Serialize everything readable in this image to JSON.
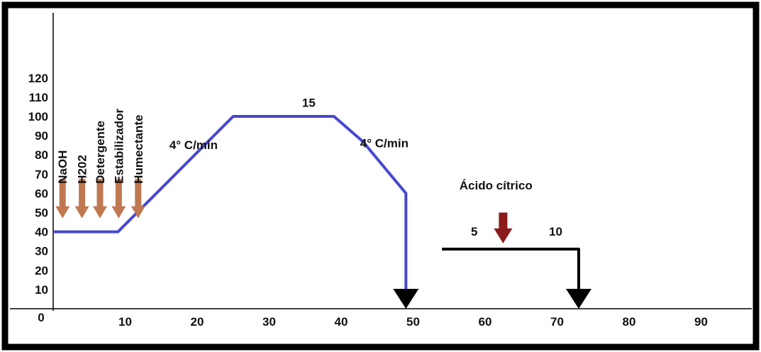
{
  "chart_data": {
    "type": "line",
    "title": "",
    "xlabel": "",
    "ylabel": "",
    "xlim": [
      0,
      90
    ],
    "ylim": [
      0,
      120
    ],
    "grid": false,
    "x_ticks": [
      {
        "value": 0,
        "label": "0"
      },
      {
        "value": 10,
        "label": "10"
      },
      {
        "value": 20,
        "label": "20"
      },
      {
        "value": 30,
        "label": "30"
      },
      {
        "value": 40,
        "label": "40"
      },
      {
        "value": 50,
        "label": "50"
      },
      {
        "value": 60,
        "label": "60"
      },
      {
        "value": 70,
        "label": "70"
      },
      {
        "value": 80,
        "label": "80"
      },
      {
        "value": 90,
        "label": "90"
      }
    ],
    "y_ticks": [
      {
        "value": 10,
        "label": "10"
      },
      {
        "value": 20,
        "label": "20"
      },
      {
        "value": 30,
        "label": "30"
      },
      {
        "value": 40,
        "label": "40"
      },
      {
        "value": 50,
        "label": "50"
      },
      {
        "value": 60,
        "label": "60"
      },
      {
        "value": 70,
        "label": "70"
      },
      {
        "value": 80,
        "label": "80"
      },
      {
        "value": 90,
        "label": "90"
      },
      {
        "value": 100,
        "label": "100"
      },
      {
        "value": 110,
        "label": "110"
      },
      {
        "value": 120,
        "label": "120"
      }
    ],
    "series": [
      {
        "color": "#4747d1",
        "x": [
          0,
          9,
          25,
          39,
          43,
          49,
          49
        ],
        "y": [
          40,
          40,
          100,
          100,
          87,
          60,
          3
        ]
      },
      {
        "color": "#000000",
        "x": [
          54,
          73,
          73
        ],
        "y": [
          31,
          31,
          3
        ]
      }
    ],
    "end_markers": [
      {
        "x": 49,
        "y": 0,
        "color": "#000000"
      },
      {
        "x": 73,
        "y": 0,
        "color": "#000000"
      }
    ],
    "dosing_arrows": [
      {
        "label": "NaOH",
        "x": 1.3,
        "color": "#c07850"
      },
      {
        "label": "H202",
        "x": 4,
        "color": "#c07850"
      },
      {
        "label": "Detergente",
        "x": 6.5,
        "color": "#c07850"
      },
      {
        "label": "Estabilizador",
        "x": 9.1,
        "color": "#c07850"
      },
      {
        "label": "Humectante",
        "x": 11.8,
        "color": "#c07850"
      }
    ],
    "annotations": [
      {
        "text": "15",
        "x": 35.5,
        "y": 105
      },
      {
        "text": "4° C/min",
        "x": 19.5,
        "y": 83
      },
      {
        "text": "4° C/min",
        "x": 46,
        "y": 84
      },
      {
        "text": "Ácido cítrico",
        "x": 61.5,
        "y": 62
      },
      {
        "text": "5",
        "x": 58.5,
        "y": 38
      },
      {
        "text": "10",
        "x": 69.8,
        "y": 38
      }
    ],
    "acid_arrow": {
      "x": 62.5,
      "y_top": 50,
      "y_tip": 34,
      "color": "#8b1a1a"
    }
  }
}
